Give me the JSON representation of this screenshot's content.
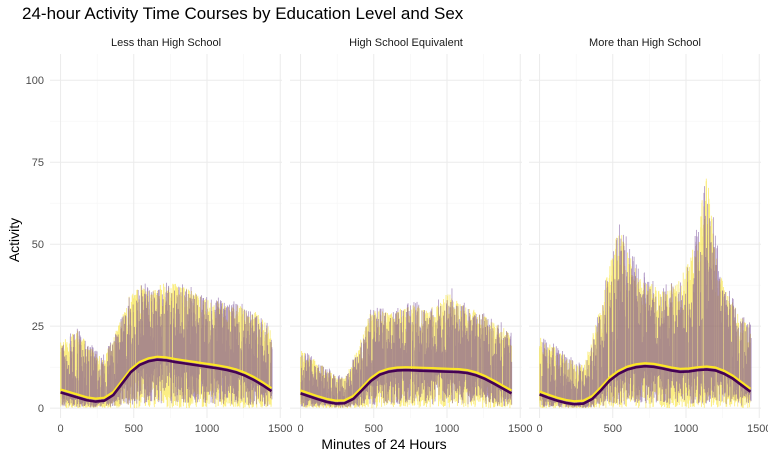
{
  "chart_data": {
    "type": "line",
    "title": "24-hour Activity Time Courses by Education Level and Sex",
    "xlabel": "Minutes of 24 Hours",
    "ylabel": "Activity",
    "xlim": [
      0,
      1440
    ],
    "ylim": [
      0,
      105
    ],
    "x_ticks": [
      0,
      500,
      1000,
      1500
    ],
    "y_ticks": [
      0,
      25,
      50,
      75,
      100
    ],
    "grid": true,
    "legend": "none",
    "colors": {
      "band_a": "#f7e01e",
      "band_b": "#6a3d8f",
      "smooth_a": "#fde725",
      "smooth_b": "#440154",
      "grid_major": "#ebebeb",
      "grid_minor": "#f5f5f5",
      "axis_text": "#4d4d4d"
    },
    "panels": [
      {
        "label": "Less than High School",
        "smooth_x": [
          0,
          60,
          120,
          180,
          240,
          300,
          360,
          420,
          480,
          540,
          600,
          660,
          720,
          780,
          840,
          900,
          960,
          1020,
          1080,
          1140,
          1200,
          1260,
          1320,
          1380,
          1440
        ],
        "smooth_y": [
          4.8,
          4.0,
          3.2,
          2.4,
          2.0,
          2.3,
          4.0,
          7.5,
          11.0,
          13.2,
          14.3,
          14.8,
          14.6,
          14.1,
          13.7,
          13.3,
          12.9,
          12.5,
          12.1,
          11.6,
          10.9,
          9.9,
          8.6,
          7.0,
          5.2
        ],
        "upper_y": [
          20,
          22,
          24,
          20,
          17,
          16,
          22,
          28,
          36,
          38,
          36,
          37,
          39,
          38,
          37,
          36,
          34,
          33,
          33,
          31,
          32,
          30,
          30,
          28,
          24
        ],
        "lower_y": [
          0,
          0,
          0,
          0,
          0,
          0,
          0,
          0,
          0,
          0,
          0,
          0,
          0,
          0,
          0,
          0,
          0,
          0,
          0,
          0,
          0,
          0,
          0,
          0,
          0
        ]
      },
      {
        "label": "High School Equivalent",
        "smooth_x": [
          0,
          60,
          120,
          180,
          240,
          300,
          360,
          420,
          480,
          540,
          600,
          660,
          720,
          780,
          840,
          900,
          960,
          1020,
          1080,
          1140,
          1200,
          1260,
          1320,
          1380,
          1440
        ],
        "smooth_y": [
          4.5,
          3.6,
          2.7,
          1.9,
          1.4,
          1.5,
          2.8,
          5.5,
          8.3,
          10.2,
          11.1,
          11.5,
          11.6,
          11.5,
          11.4,
          11.3,
          11.2,
          11.1,
          11.0,
          10.7,
          10.0,
          8.9,
          7.5,
          6.0,
          4.5
        ],
        "upper_y": [
          18,
          16,
          14,
          12,
          10,
          9,
          15,
          22,
          30,
          30,
          29,
          30,
          31,
          32,
          30,
          31,
          33,
          36,
          32,
          31,
          30,
          28,
          26,
          25,
          22
        ],
        "lower_y": [
          0,
          0,
          0,
          0,
          0,
          0,
          0,
          0,
          0,
          0,
          0,
          0,
          0,
          0,
          0,
          0,
          0,
          0,
          0,
          0,
          0,
          0,
          0,
          0,
          0
        ]
      },
      {
        "label": "More than High School",
        "smooth_x": [
          0,
          60,
          120,
          180,
          240,
          300,
          360,
          420,
          480,
          540,
          600,
          660,
          720,
          780,
          840,
          900,
          960,
          1020,
          1080,
          1140,
          1200,
          1260,
          1320,
          1380,
          1440
        ],
        "smooth_y": [
          4.2,
          3.2,
          2.3,
          1.6,
          1.2,
          1.4,
          2.8,
          5.5,
          8.5,
          10.5,
          11.8,
          12.5,
          12.8,
          12.6,
          12.1,
          11.5,
          11.1,
          11.2,
          11.6,
          11.8,
          11.5,
          10.5,
          9.0,
          7.0,
          5.0
        ],
        "upper_y": [
          22,
          20,
          18,
          16,
          14,
          13,
          22,
          32,
          45,
          55,
          50,
          42,
          40,
          38,
          36,
          38,
          40,
          45,
          55,
          75,
          50,
          38,
          32,
          28,
          25
        ],
        "lower_y": [
          0,
          0,
          0,
          0,
          0,
          0,
          0,
          0,
          0,
          0,
          0,
          0,
          0,
          0,
          0,
          0,
          0,
          0,
          0,
          0,
          0,
          0,
          0,
          0,
          0
        ]
      }
    ]
  }
}
